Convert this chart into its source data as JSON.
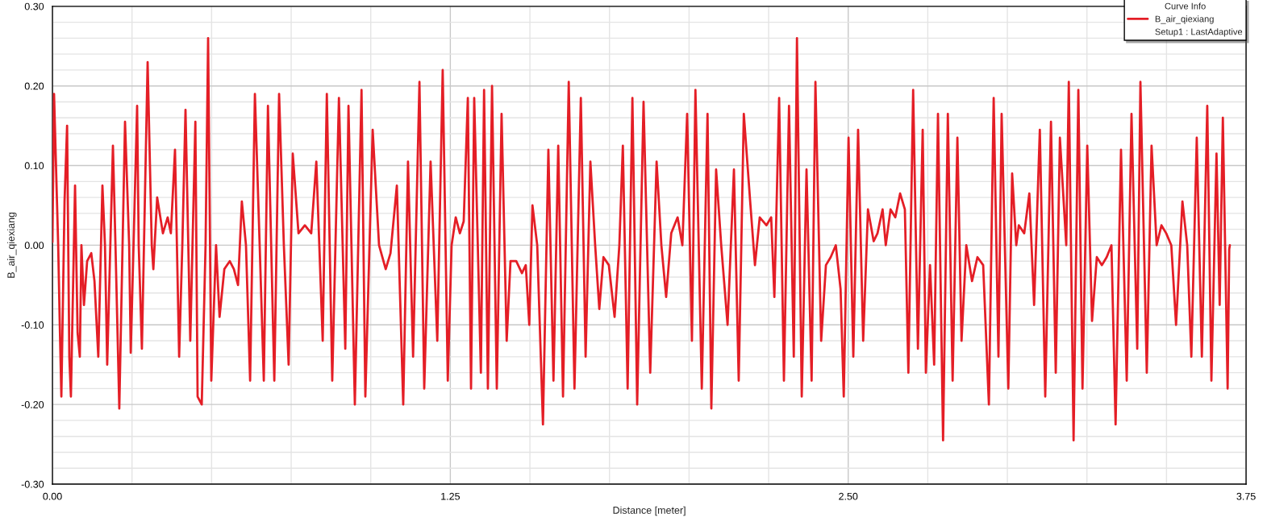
{
  "chart_data": {
    "type": "line",
    "xlabel": "Distance [meter]",
    "ylabel": "B_air_qiexiang",
    "legend_title": "Curve Info",
    "legend": "top right",
    "grid": true,
    "marker": "none",
    "line_style": "solid",
    "annotations": [
      "Setup1 : LastAdaptive"
    ],
    "xlim": [
      0,
      3.75
    ],
    "ylim": [
      -0.3,
      0.3
    ],
    "xticks": [
      {
        "value": 0,
        "label": "0.00"
      },
      {
        "value": 0.25,
        "label": null
      },
      {
        "value": 0.5,
        "label": null
      },
      {
        "value": 0.75,
        "label": null
      },
      {
        "value": 1.0,
        "label": null
      },
      {
        "value": 1.25,
        "label": "1.25"
      },
      {
        "value": 1.5,
        "label": null
      },
      {
        "value": 1.75,
        "label": null
      },
      {
        "value": 2.0,
        "label": null
      },
      {
        "value": 2.25,
        "label": null
      },
      {
        "value": 2.5,
        "label": "2.50"
      },
      {
        "value": 2.75,
        "label": null
      },
      {
        "value": 3.0,
        "label": null
      },
      {
        "value": 3.25,
        "label": null
      },
      {
        "value": 3.5,
        "label": null
      },
      {
        "value": 3.75,
        "label": "3.75"
      }
    ],
    "yticks": [
      {
        "value": -0.3,
        "label": "-0.30"
      },
      {
        "value": -0.28,
        "label": null
      },
      {
        "value": -0.26,
        "label": null
      },
      {
        "value": -0.24,
        "label": null
      },
      {
        "value": -0.22,
        "label": null
      },
      {
        "value": -0.2,
        "label": "-0.20"
      },
      {
        "value": -0.18,
        "label": null
      },
      {
        "value": -0.16,
        "label": null
      },
      {
        "value": -0.14,
        "label": null
      },
      {
        "value": -0.12,
        "label": null
      },
      {
        "value": -0.1,
        "label": "-0.10"
      },
      {
        "value": -0.08,
        "label": null
      },
      {
        "value": -0.06,
        "label": null
      },
      {
        "value": -0.04,
        "label": null
      },
      {
        "value": -0.02,
        "label": null
      },
      {
        "value": 0,
        "label": "0.00"
      },
      {
        "value": 0.02,
        "label": null
      },
      {
        "value": 0.04,
        "label": null
      },
      {
        "value": 0.06,
        "label": null
      },
      {
        "value": 0.08,
        "label": null
      },
      {
        "value": 0.1,
        "label": "0.10"
      },
      {
        "value": 0.12,
        "label": null
      },
      {
        "value": 0.14,
        "label": null
      },
      {
        "value": 0.16,
        "label": null
      },
      {
        "value": 0.18,
        "label": null
      },
      {
        "value": 0.2,
        "label": "0.20"
      },
      {
        "value": 0.22,
        "label": null
      },
      {
        "value": 0.24,
        "label": null
      },
      {
        "value": 0.26,
        "label": null
      },
      {
        "value": 0.28,
        "label": null
      },
      {
        "value": 0.3,
        "label": "0.30"
      }
    ],
    "series": [
      {
        "name": "B_air_qiexiang",
        "color": "#e41e26",
        "x": [
          0.0,
          0.005,
          0.018,
          0.023,
          0.028,
          0.038,
          0.046,
          0.053,
          0.058,
          0.071,
          0.079,
          0.086,
          0.091,
          0.099,
          0.109,
          0.122,
          0.132,
          0.144,
          0.157,
          0.165,
          0.172,
          0.19,
          0.198,
          0.21,
          0.228,
          0.241,
          0.246,
          0.266,
          0.271,
          0.281,
          0.299,
          0.312,
          0.317,
          0.329,
          0.347,
          0.362,
          0.372,
          0.385,
          0.398,
          0.408,
          0.418,
          0.433,
          0.449,
          0.456,
          0.469,
          0.481,
          0.489,
          0.499,
          0.514,
          0.525,
          0.54,
          0.557,
          0.57,
          0.583,
          0.595,
          0.608,
          0.621,
          0.636,
          0.651,
          0.664,
          0.677,
          0.697,
          0.712,
          0.727,
          0.742,
          0.755,
          0.773,
          0.793,
          0.813,
          0.829,
          0.849,
          0.862,
          0.879,
          0.9,
          0.92,
          0.93,
          0.95,
          0.971,
          0.983,
          1.006,
          1.026,
          1.047,
          1.062,
          1.082,
          1.102,
          1.117,
          1.133,
          1.153,
          1.168,
          1.188,
          1.209,
          1.226,
          1.242,
          1.254,
          1.267,
          1.28,
          1.292,
          1.305,
          1.315,
          1.325,
          1.346,
          1.356,
          1.368,
          1.381,
          1.396,
          1.411,
          1.427,
          1.439,
          1.457,
          1.475,
          1.487,
          1.498,
          1.508,
          1.523,
          1.541,
          1.558,
          1.574,
          1.589,
          1.604,
          1.622,
          1.64,
          1.66,
          1.675,
          1.69,
          1.705,
          1.718,
          1.731,
          1.748,
          1.766,
          1.781,
          1.792,
          1.807,
          1.822,
          1.837,
          1.857,
          1.878,
          1.898,
          1.913,
          1.928,
          1.944,
          1.964,
          1.979,
          1.994,
          2.009,
          2.02,
          2.04,
          2.058,
          2.07,
          2.085,
          2.101,
          2.121,
          2.141,
          2.156,
          2.172,
          2.192,
          2.207,
          2.222,
          2.243,
          2.258,
          2.268,
          2.283,
          2.298,
          2.314,
          2.329,
          2.339,
          2.354,
          2.369,
          2.385,
          2.397,
          2.415,
          2.43,
          2.445,
          2.461,
          2.476,
          2.486,
          2.501,
          2.516,
          2.531,
          2.547,
          2.562,
          2.58,
          2.592,
          2.608,
          2.618,
          2.633,
          2.648,
          2.663,
          2.678,
          2.689,
          2.704,
          2.719,
          2.734,
          2.744,
          2.757,
          2.77,
          2.782,
          2.798,
          2.813,
          2.828,
          2.843,
          2.856,
          2.871,
          2.889,
          2.906,
          2.924,
          2.942,
          2.957,
          2.972,
          2.982,
          3.003,
          3.015,
          3.028,
          3.036,
          3.053,
          3.069,
          3.084,
          3.102,
          3.119,
          3.137,
          3.152,
          3.165,
          3.185,
          3.193,
          3.208,
          3.223,
          3.236,
          3.251,
          3.266,
          3.281,
          3.297,
          3.312,
          3.327,
          3.34,
          3.357,
          3.375,
          3.39,
          3.408,
          3.418,
          3.438,
          3.453,
          3.469,
          3.484,
          3.499,
          3.515,
          3.53,
          3.55,
          3.565,
          3.578,
          3.595,
          3.611,
          3.628,
          3.641,
          3.657,
          3.667,
          3.677,
          3.692,
          3.697,
          3.699
        ],
        "values": [
          0.004,
          0.19,
          0.0,
          -0.1,
          -0.19,
          0.055,
          0.15,
          -0.14,
          -0.19,
          0.075,
          -0.11,
          -0.14,
          0.0,
          -0.075,
          -0.02,
          -0.01,
          -0.045,
          -0.14,
          0.075,
          0.0,
          -0.15,
          0.125,
          0.0,
          -0.205,
          0.155,
          0.0,
          -0.135,
          0.175,
          0.0,
          -0.13,
          0.23,
          0.0,
          -0.03,
          0.06,
          0.015,
          0.035,
          0.015,
          0.12,
          -0.14,
          0.0,
          0.17,
          -0.12,
          0.155,
          -0.19,
          -0.2,
          0.0,
          0.26,
          -0.17,
          0.0,
          -0.09,
          -0.03,
          -0.02,
          -0.03,
          -0.05,
          0.055,
          0.0,
          -0.17,
          0.19,
          0.0,
          -0.17,
          0.175,
          -0.17,
          0.19,
          0.0,
          -0.15,
          0.115,
          0.015,
          0.025,
          0.015,
          0.105,
          -0.12,
          0.19,
          -0.17,
          0.185,
          -0.13,
          0.175,
          -0.2,
          0.195,
          -0.19,
          0.145,
          0.0,
          -0.03,
          -0.01,
          0.075,
          -0.2,
          0.105,
          -0.14,
          0.205,
          -0.18,
          0.105,
          -0.12,
          0.22,
          -0.17,
          0.0,
          0.035,
          0.015,
          0.03,
          0.185,
          -0.18,
          0.185,
          -0.16,
          0.195,
          -0.18,
          0.2,
          -0.18,
          0.165,
          -0.12,
          -0.02,
          -0.02,
          -0.035,
          -0.025,
          -0.1,
          0.05,
          0.0,
          -0.225,
          0.12,
          -0.17,
          0.125,
          -0.19,
          0.205,
          -0.18,
          0.185,
          -0.14,
          0.105,
          0.0,
          -0.08,
          -0.015,
          -0.025,
          -0.09,
          0.0,
          0.125,
          -0.18,
          0.185,
          -0.2,
          0.18,
          -0.16,
          0.105,
          0.0,
          -0.065,
          0.015,
          0.035,
          0.0,
          0.165,
          -0.12,
          0.195,
          -0.18,
          0.165,
          -0.205,
          0.095,
          0.0,
          -0.1,
          0.095,
          -0.17,
          0.165,
          0.055,
          -0.025,
          0.035,
          0.025,
          0.035,
          -0.065,
          0.185,
          -0.17,
          0.175,
          -0.14,
          0.26,
          -0.19,
          0.095,
          -0.17,
          0.205,
          -0.12,
          -0.025,
          -0.015,
          0.0,
          -0.055,
          -0.19,
          0.135,
          -0.14,
          0.145,
          -0.12,
          0.045,
          0.005,
          0.015,
          0.045,
          0.0,
          0.045,
          0.035,
          0.065,
          0.045,
          -0.16,
          0.195,
          -0.13,
          0.145,
          -0.16,
          -0.025,
          -0.15,
          0.165,
          -0.245,
          0.165,
          -0.17,
          0.135,
          -0.12,
          0.0,
          -0.045,
          -0.015,
          -0.025,
          -0.2,
          0.185,
          -0.14,
          0.165,
          -0.18,
          0.09,
          0.0,
          0.025,
          0.015,
          0.065,
          -0.075,
          0.145,
          -0.19,
          0.155,
          -0.16,
          0.135,
          0.0,
          0.205,
          -0.245,
          0.195,
          -0.18,
          0.125,
          -0.095,
          -0.015,
          -0.025,
          -0.015,
          0.0,
          -0.225,
          0.12,
          -0.17,
          0.165,
          -0.13,
          0.205,
          -0.16,
          0.125,
          0.0,
          0.025,
          0.015,
          0.0,
          -0.1,
          0.055,
          0.0,
          -0.14,
          0.135,
          -0.14,
          0.175,
          -0.17,
          0.115,
          -0.075,
          0.16,
          -0.18,
          -0.005,
          0.0
        ]
      }
    ]
  }
}
